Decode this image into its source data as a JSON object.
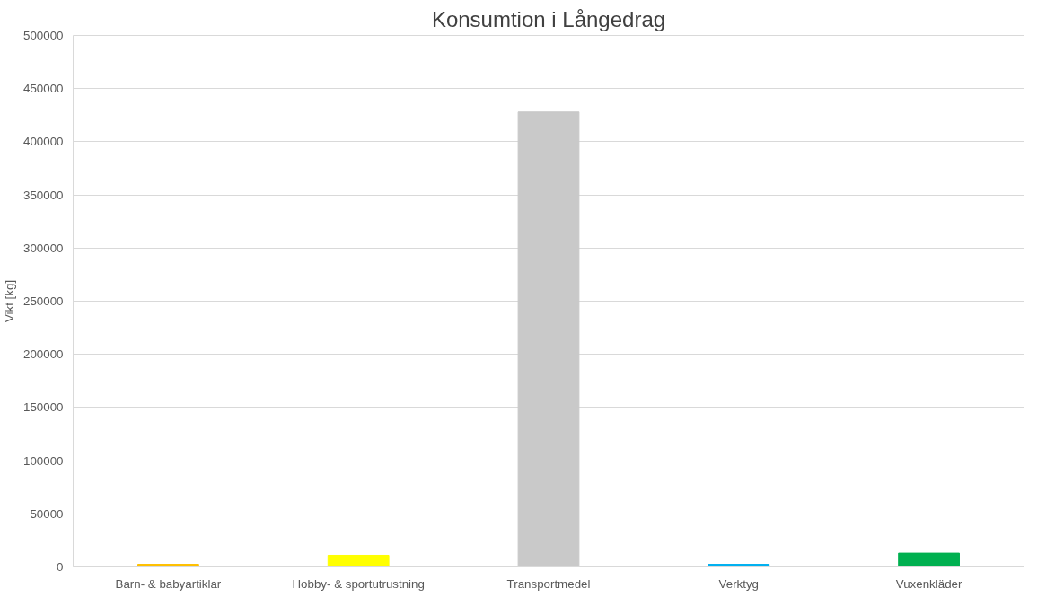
{
  "chart_data": {
    "type": "bar",
    "title": "Konsumtion i Långedrag",
    "ylabel": "Vikt [kg]",
    "categories": [
      "Barn- & babyartiklar",
      "Hobby- & sportutrustning",
      "Transportmedel",
      "Verktyg",
      "Vuxenkläder"
    ],
    "values": [
      2500,
      11000,
      428000,
      2500,
      13000
    ],
    "colors": [
      "#ffc000",
      "#ffff00",
      "#c9c9c9",
      "#00b0f0",
      "#00b050"
    ],
    "ylim": [
      0,
      500000
    ],
    "yticks": [
      0,
      50000,
      100000,
      150000,
      200000,
      250000,
      300000,
      350000,
      400000,
      450000,
      500000
    ],
    "grid": "y"
  }
}
